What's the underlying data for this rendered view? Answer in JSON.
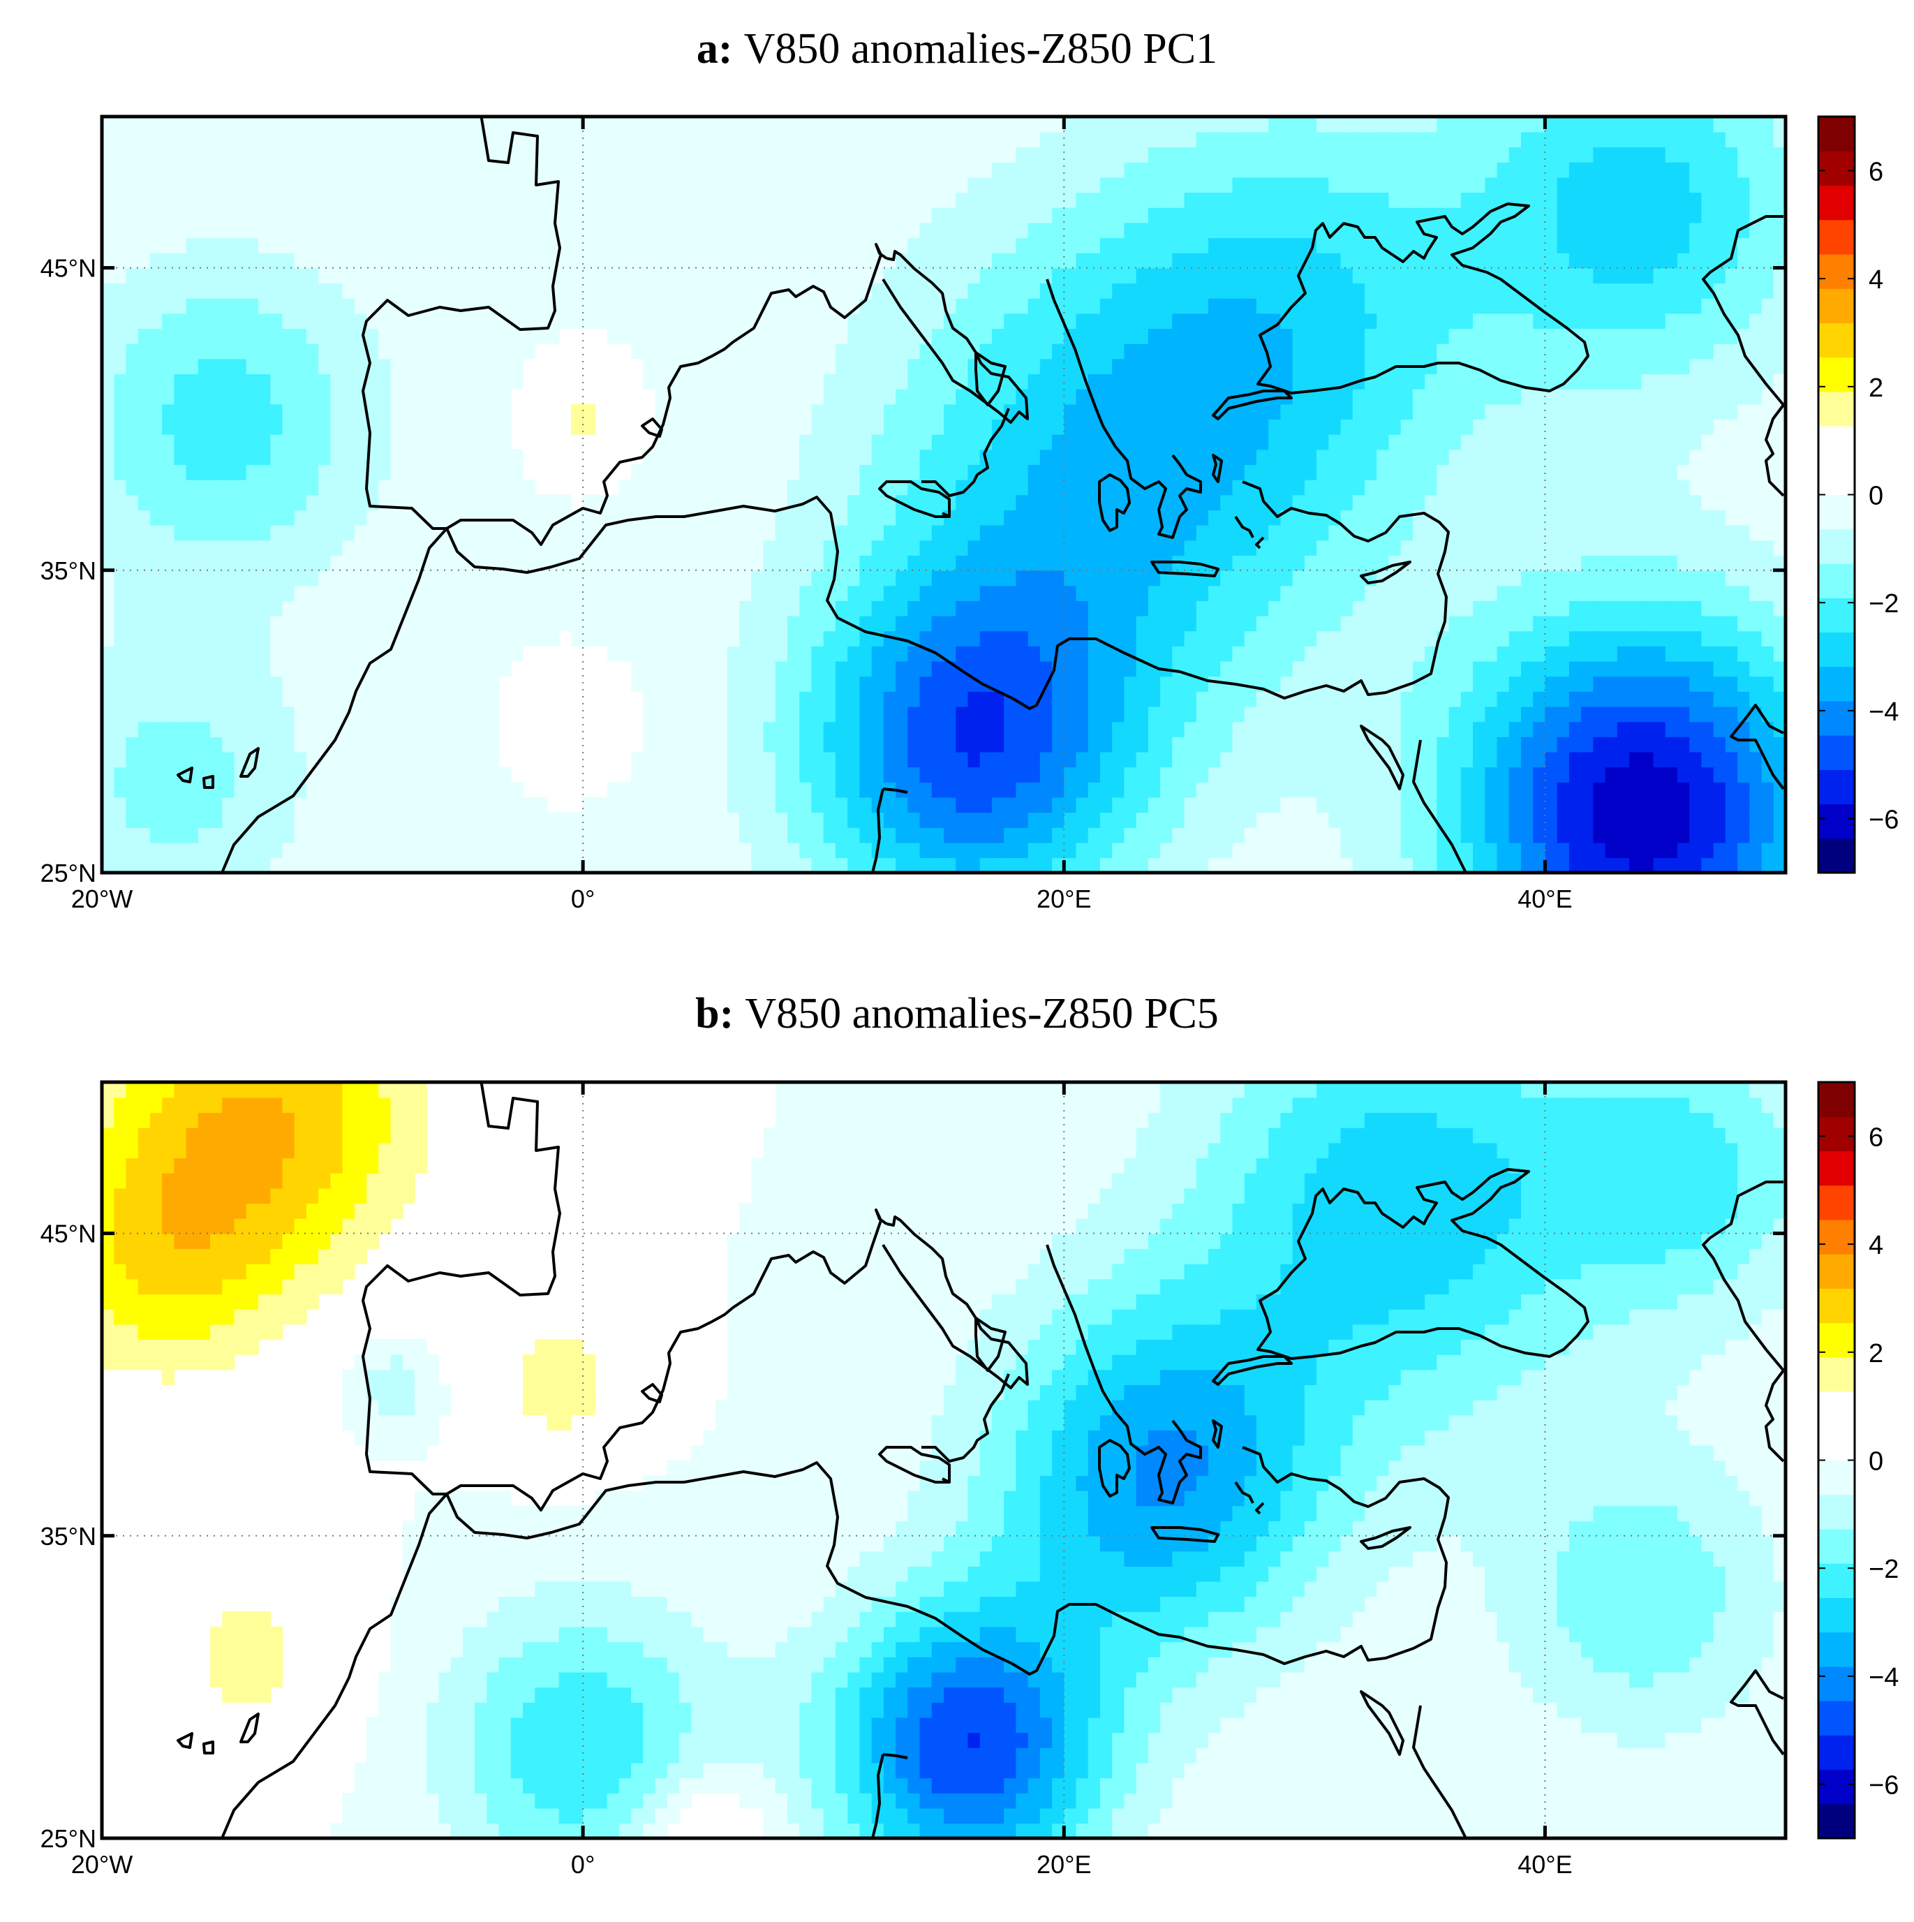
{
  "colormap": [
    "#00007f",
    "#0000c8",
    "#0022ee",
    "#0055ff",
    "#0088ff",
    "#00b4ff",
    "#14d9ff",
    "#3ef2ff",
    "#80ffff",
    "#bdffff",
    "#e6ffff",
    "#ffffff",
    "#ffffff",
    "#ffff99",
    "#ffff00",
    "#ffd400",
    "#ffaa00",
    "#ff7f00",
    "#ff4400",
    "#e00000",
    "#a00000",
    "#7f0000"
  ],
  "colorbar": {
    "min": -7,
    "max": 7,
    "ticks": [
      "6",
      "4",
      "2",
      "0",
      "−2",
      "−4",
      "−6"
    ],
    "tick_values": [
      6,
      4,
      2,
      0,
      -2,
      -4,
      -6
    ]
  },
  "axes": {
    "x_ticks": [
      "20ᴼW",
      "0ᴼ",
      "20ᴼE",
      "40ᴼE"
    ],
    "x_values": [
      -20,
      0,
      20,
      40
    ],
    "y_ticks": [
      "25ᴼN",
      "35ᴼN",
      "45ᴼN"
    ],
    "y_values": [
      25,
      35,
      45
    ],
    "lon_range": [
      -20,
      50
    ],
    "lat_range": [
      25,
      50
    ]
  },
  "panels": [
    {
      "label": "a:",
      "title": "V850 anomalies-Z850 PC1",
      "anomaly_centers": [
        {
          "lon": 44,
          "lat": 27,
          "value": -6.2,
          "spread": 5.5
        },
        {
          "lon": 16,
          "lat": 29,
          "value": -4.5,
          "spread": 5.0
        },
        {
          "lon": 22,
          "lat": 38,
          "value": -3.0,
          "spread": 7.0
        },
        {
          "lon": 44,
          "lat": 47,
          "value": -2.8,
          "spread": 5.0
        },
        {
          "lon": 30,
          "lat": 44,
          "value": -2.0,
          "spread": 6.0
        },
        {
          "lon": -15,
          "lat": 40,
          "value": -2.2,
          "spread": 4.5
        },
        {
          "lon": -17,
          "lat": 28,
          "value": -1.5,
          "spread": 4.0
        },
        {
          "lon": 0,
          "lat": 40,
          "value": 1.5,
          "spread": 1.2
        },
        {
          "lon": 0,
          "lat": 30,
          "value": 1.3,
          "spread": 1.2
        }
      ]
    },
    {
      "label": "b:",
      "title": "V850 anomalies-Z850 PC5",
      "anomaly_centers": [
        {
          "lon": 16,
          "lat": 28,
          "value": -5.0,
          "spread": 4.0
        },
        {
          "lon": 24,
          "lat": 37,
          "value": -3.8,
          "spread": 5.0
        },
        {
          "lon": 34,
          "lat": 46,
          "value": -3.0,
          "spread": 6.0
        },
        {
          "lon": 0,
          "lat": 28,
          "value": -2.5,
          "spread": 4.0
        },
        {
          "lon": 44,
          "lat": 33,
          "value": -1.8,
          "spread": 4.0
        },
        {
          "lon": 46,
          "lat": 47,
          "value": -2.0,
          "spread": 4.0
        },
        {
          "lon": -13,
          "lat": 49,
          "value": 3.0,
          "spread": 5.0
        },
        {
          "lon": -18,
          "lat": 44,
          "value": 2.0,
          "spread": 4.0
        },
        {
          "lon": -1,
          "lat": 40,
          "value": 1.8,
          "spread": 2.0
        },
        {
          "lon": -14,
          "lat": 31,
          "value": 1.5,
          "spread": 3.0
        },
        {
          "lon": 5,
          "lat": 25,
          "value": 1.6,
          "spread": 2.0
        },
        {
          "lon": -8,
          "lat": 40,
          "value": -1.3,
          "spread": 1.2
        }
      ]
    }
  ]
}
